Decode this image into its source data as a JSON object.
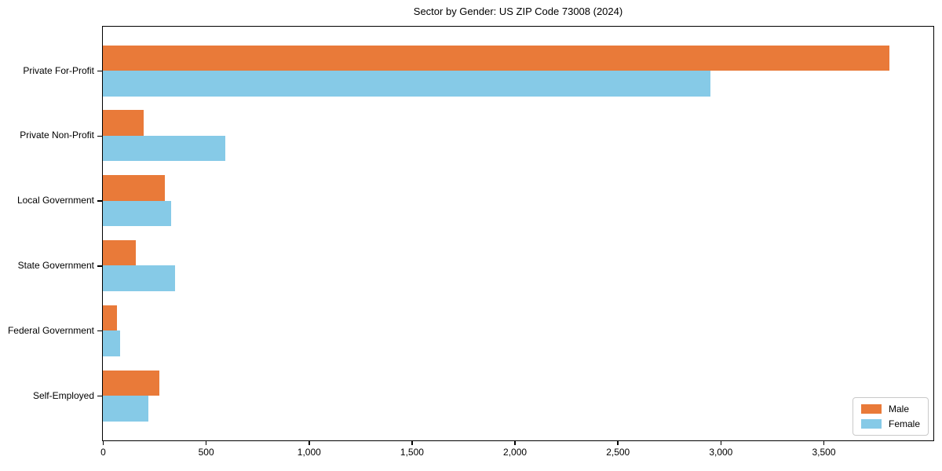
{
  "chart_data": {
    "type": "bar",
    "orientation": "horizontal",
    "title": "Sector by Gender: US ZIP Code 73008 (2024)",
    "categories": [
      "Private For-Profit",
      "Private Non-Profit",
      "Local Government",
      "State Government",
      "Federal Government",
      "Self-Employed"
    ],
    "series": [
      {
        "name": "Male",
        "color": "#e97a39",
        "values": [
          3820,
          200,
          300,
          160,
          70,
          275
        ]
      },
      {
        "name": "Female",
        "color": "#86cae7",
        "values": [
          2950,
          595,
          330,
          350,
          85,
          220
        ]
      }
    ],
    "xlabel": "",
    "ylabel": "",
    "xlim": [
      0,
      4030
    ],
    "xticks": [
      0,
      500,
      1000,
      1500,
      2000,
      2500,
      3000,
      3500
    ],
    "xtick_labels": [
      "0",
      "500",
      "1,000",
      "1,500",
      "2,000",
      "2,500",
      "3,000",
      "3,500"
    ],
    "grid": false,
    "background": "#ffffff",
    "legend": {
      "position": "lower right"
    }
  }
}
